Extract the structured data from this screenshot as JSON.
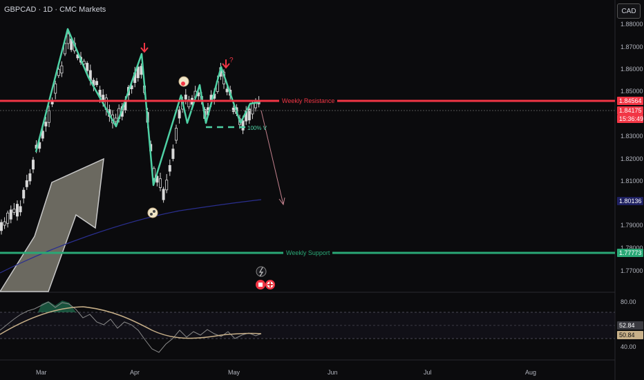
{
  "header": {
    "ticker": "GBPCAD · 1D · CMC Markets",
    "currency": "CAD"
  },
  "price_axis": {
    "labels": [
      "1.88000",
      "1.87000",
      "1.86000",
      "1.85000",
      "1.83000",
      "1.82000",
      "1.81000",
      "1.79000",
      "1.78000",
      "1.77000"
    ]
  },
  "price_tags": {
    "resistance": "1.84564",
    "current": "1.84175",
    "countdown": "15:36:49",
    "ma": "1.80136",
    "support": "1.77773"
  },
  "levels": {
    "resistance_label": "Weekly Resistance",
    "support_label": "Weekly Support",
    "retrace_label": "100% V",
    "question_mark": "?"
  },
  "rsi_axis": {
    "top": "80.00",
    "bottom": "40.00",
    "val1": "52.84",
    "val2": "50.84"
  },
  "time_axis": [
    "Mar",
    "Apr",
    "May",
    "Jun",
    "Jul",
    "Aug"
  ],
  "colors": {
    "background": "#0b0b0d",
    "resistance": "#f23645",
    "support": "#2aa876",
    "pattern": "#4fd1a5",
    "ma": "#2a2f8f",
    "candle": "#d8d8d8",
    "rsi_line": "#8a8a8a",
    "rsi_ma": "#c8b089"
  },
  "icons": [
    "arrow-down-icon",
    "flag-icon",
    "lightning-icon",
    "calendar-icon",
    "flag-uk-icon",
    "retracement-icon"
  ]
}
